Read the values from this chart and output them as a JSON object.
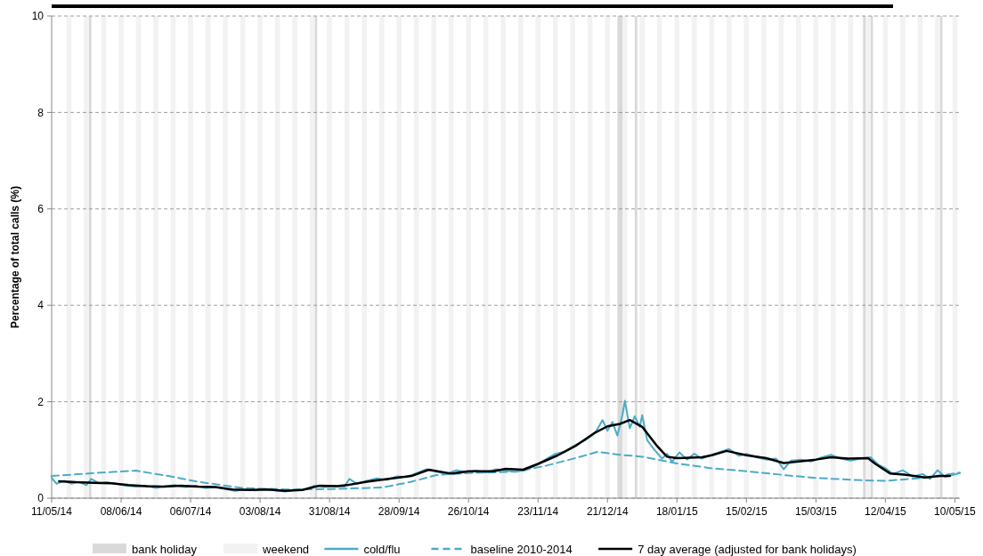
{
  "chart_data": {
    "type": "line",
    "ylabel": "Percentage of total calls (%)",
    "xlim": [
      "2014-05-11",
      "2015-05-12"
    ],
    "xticks": [
      {
        "value": "2014-05-11",
        "label": "11/05/14"
      },
      {
        "value": "2014-06-08",
        "label": "08/06/14"
      },
      {
        "value": "2014-07-06",
        "label": "06/07/14"
      },
      {
        "value": "2014-08-03",
        "label": "03/08/14"
      },
      {
        "value": "2014-08-31",
        "label": "31/08/14"
      },
      {
        "value": "2014-09-28",
        "label": "28/09/14"
      },
      {
        "value": "2014-10-26",
        "label": "26/10/14"
      },
      {
        "value": "2014-11-23",
        "label": "23/11/14"
      },
      {
        "value": "2014-12-21",
        "label": "21/12/14"
      },
      {
        "value": "2015-01-18",
        "label": "18/01/15"
      },
      {
        "value": "2015-02-15",
        "label": "15/02/15"
      },
      {
        "value": "2015-03-15",
        "label": "15/03/15"
      },
      {
        "value": "2015-04-12",
        "label": "12/04/15"
      },
      {
        "value": "2015-05-10",
        "label": "10/05/15"
      }
    ],
    "ylim": [
      0,
      10
    ],
    "yticks": [
      0,
      2,
      4,
      6,
      8,
      10
    ],
    "grid": "y",
    "legend": "bottom",
    "bands": [
      {
        "axis": "x",
        "from": "2014-05-26",
        "to": "2014-05-27",
        "label": "bank holiday",
        "color": "#d9d9d9"
      },
      {
        "axis": "x",
        "from": "2014-08-25",
        "to": "2014-08-26",
        "color": "#d9d9d9"
      },
      {
        "axis": "x",
        "from": "2014-12-25",
        "to": "2014-12-27",
        "color": "#d9d9d9"
      },
      {
        "axis": "x",
        "from": "2015-01-01",
        "to": "2015-01-02",
        "color": "#d9d9d9"
      },
      {
        "axis": "x",
        "from": "2015-04-03",
        "to": "2015-04-04",
        "color": "#d9d9d9"
      },
      {
        "axis": "x",
        "from": "2015-04-06",
        "to": "2015-04-07",
        "color": "#d9d9d9"
      },
      {
        "axis": "x",
        "from": "2015-05-04",
        "to": "2015-05-05",
        "color": "#d9d9d9"
      },
      {
        "axis": "x",
        "from": "2014-05-17",
        "to": "2014-05-19",
        "label": "weekend",
        "color": "#f2f2f2"
      },
      {
        "axis": "x",
        "from": "2014-05-24",
        "to": "2014-05-26",
        "color": "#f2f2f2"
      },
      {
        "axis": "x",
        "from": "2014-05-31",
        "to": "2014-06-02",
        "color": "#f2f2f2"
      },
      {
        "axis": "x",
        "from": "2014-06-07",
        "to": "2014-06-09",
        "color": "#f2f2f2"
      },
      {
        "axis": "x",
        "from": "2014-06-14",
        "to": "2014-06-16",
        "color": "#f2f2f2"
      },
      {
        "axis": "x",
        "from": "2014-06-21",
        "to": "2014-06-23",
        "color": "#f2f2f2"
      },
      {
        "axis": "x",
        "from": "2014-06-28",
        "to": "2014-06-30",
        "color": "#f2f2f2"
      },
      {
        "axis": "x",
        "from": "2014-07-05",
        "to": "2014-07-07",
        "color": "#f2f2f2"
      },
      {
        "axis": "x",
        "from": "2014-07-12",
        "to": "2014-07-14",
        "color": "#f2f2f2"
      },
      {
        "axis": "x",
        "from": "2014-07-19",
        "to": "2014-07-21",
        "color": "#f2f2f2"
      },
      {
        "axis": "x",
        "from": "2014-07-26",
        "to": "2014-07-28",
        "color": "#f2f2f2"
      },
      {
        "axis": "x",
        "from": "2014-08-02",
        "to": "2014-08-04",
        "color": "#f2f2f2"
      },
      {
        "axis": "x",
        "from": "2014-08-09",
        "to": "2014-08-11",
        "color": "#f2f2f2"
      },
      {
        "axis": "x",
        "from": "2014-08-16",
        "to": "2014-08-18",
        "color": "#f2f2f2"
      },
      {
        "axis": "x",
        "from": "2014-08-23",
        "to": "2014-08-25",
        "color": "#f2f2f2"
      },
      {
        "axis": "x",
        "from": "2014-08-30",
        "to": "2014-09-01",
        "color": "#f2f2f2"
      },
      {
        "axis": "x",
        "from": "2014-09-06",
        "to": "2014-09-08",
        "color": "#f2f2f2"
      },
      {
        "axis": "x",
        "from": "2014-09-13",
        "to": "2014-09-15",
        "color": "#f2f2f2"
      },
      {
        "axis": "x",
        "from": "2014-09-20",
        "to": "2014-09-22",
        "color": "#f2f2f2"
      },
      {
        "axis": "x",
        "from": "2014-09-27",
        "to": "2014-09-29",
        "color": "#f2f2f2"
      },
      {
        "axis": "x",
        "from": "2014-10-04",
        "to": "2014-10-06",
        "color": "#f2f2f2"
      },
      {
        "axis": "x",
        "from": "2014-10-11",
        "to": "2014-10-13",
        "color": "#f2f2f2"
      },
      {
        "axis": "x",
        "from": "2014-10-18",
        "to": "2014-10-20",
        "color": "#f2f2f2"
      },
      {
        "axis": "x",
        "from": "2014-10-25",
        "to": "2014-10-27",
        "color": "#f2f2f2"
      },
      {
        "axis": "x",
        "from": "2014-11-01",
        "to": "2014-11-03",
        "color": "#f2f2f2"
      },
      {
        "axis": "x",
        "from": "2014-11-08",
        "to": "2014-11-10",
        "color": "#f2f2f2"
      },
      {
        "axis": "x",
        "from": "2014-11-15",
        "to": "2014-11-17",
        "color": "#f2f2f2"
      },
      {
        "axis": "x",
        "from": "2014-11-22",
        "to": "2014-11-24",
        "color": "#f2f2f2"
      },
      {
        "axis": "x",
        "from": "2014-11-29",
        "to": "2014-12-01",
        "color": "#f2f2f2"
      },
      {
        "axis": "x",
        "from": "2014-12-06",
        "to": "2014-12-08",
        "color": "#f2f2f2"
      },
      {
        "axis": "x",
        "from": "2014-12-13",
        "to": "2014-12-15",
        "color": "#f2f2f2"
      },
      {
        "axis": "x",
        "from": "2014-12-20",
        "to": "2014-12-22",
        "color": "#f2f2f2"
      },
      {
        "axis": "x",
        "from": "2014-12-27",
        "to": "2014-12-29",
        "color": "#f2f2f2"
      },
      {
        "axis": "x",
        "from": "2015-01-03",
        "to": "2015-01-05",
        "color": "#f2f2f2"
      },
      {
        "axis": "x",
        "from": "2015-01-10",
        "to": "2015-01-12",
        "color": "#f2f2f2"
      },
      {
        "axis": "x",
        "from": "2015-01-17",
        "to": "2015-01-19",
        "color": "#f2f2f2"
      },
      {
        "axis": "x",
        "from": "2015-01-24",
        "to": "2015-01-26",
        "color": "#f2f2f2"
      },
      {
        "axis": "x",
        "from": "2015-01-31",
        "to": "2015-02-02",
        "color": "#f2f2f2"
      },
      {
        "axis": "x",
        "from": "2015-02-07",
        "to": "2015-02-09",
        "color": "#f2f2f2"
      },
      {
        "axis": "x",
        "from": "2015-02-14",
        "to": "2015-02-16",
        "color": "#f2f2f2"
      },
      {
        "axis": "x",
        "from": "2015-02-21",
        "to": "2015-02-23",
        "color": "#f2f2f2"
      },
      {
        "axis": "x",
        "from": "2015-02-28",
        "to": "2015-03-02",
        "color": "#f2f2f2"
      },
      {
        "axis": "x",
        "from": "2015-03-07",
        "to": "2015-03-09",
        "color": "#f2f2f2"
      },
      {
        "axis": "x",
        "from": "2015-03-14",
        "to": "2015-03-16",
        "color": "#f2f2f2"
      },
      {
        "axis": "x",
        "from": "2015-03-21",
        "to": "2015-03-23",
        "color": "#f2f2f2"
      },
      {
        "axis": "x",
        "from": "2015-03-28",
        "to": "2015-03-30",
        "color": "#f2f2f2"
      },
      {
        "axis": "x",
        "from": "2015-04-04",
        "to": "2015-04-06",
        "color": "#f2f2f2"
      },
      {
        "axis": "x",
        "from": "2015-04-11",
        "to": "2015-04-13",
        "color": "#f2f2f2"
      },
      {
        "axis": "x",
        "from": "2015-04-18",
        "to": "2015-04-20",
        "color": "#f2f2f2"
      },
      {
        "axis": "x",
        "from": "2015-04-25",
        "to": "2015-04-27",
        "color": "#f2f2f2"
      },
      {
        "axis": "x",
        "from": "2015-05-02",
        "to": "2015-05-04",
        "color": "#f2f2f2"
      },
      {
        "axis": "x",
        "from": "2015-05-09",
        "to": "2015-05-11",
        "color": "#f2f2f2"
      }
    ],
    "series": [
      {
        "name": "cold/flu",
        "color": "#4bacc6",
        "line_style": "solid",
        "x": [
          "2014-05-11",
          "2014-05-13",
          "2014-05-16",
          "2014-05-19",
          "2014-05-22",
          "2014-05-25",
          "2014-05-27",
          "2014-05-30",
          "2014-06-02",
          "2014-06-06",
          "2014-06-10",
          "2014-06-14",
          "2014-06-18",
          "2014-06-22",
          "2014-06-26",
          "2014-06-30",
          "2014-07-04",
          "2014-07-08",
          "2014-07-12",
          "2014-07-16",
          "2014-07-20",
          "2014-07-24",
          "2014-07-28",
          "2014-08-01",
          "2014-08-05",
          "2014-08-09",
          "2014-08-13",
          "2014-08-17",
          "2014-08-21",
          "2014-08-25",
          "2014-08-29",
          "2014-09-02",
          "2014-09-06",
          "2014-09-08",
          "2014-09-11",
          "2014-09-15",
          "2014-09-19",
          "2014-09-23",
          "2014-09-27",
          "2014-10-01",
          "2014-10-05",
          "2014-10-09",
          "2014-10-13",
          "2014-10-17",
          "2014-10-21",
          "2014-10-25",
          "2014-10-29",
          "2014-11-02",
          "2014-11-06",
          "2014-11-10",
          "2014-11-14",
          "2014-11-18",
          "2014-11-22",
          "2014-11-26",
          "2014-11-30",
          "2014-12-04",
          "2014-12-08",
          "2014-12-12",
          "2014-12-16",
          "2014-12-19",
          "2014-12-21",
          "2014-12-23",
          "2014-12-25",
          "2014-12-27",
          "2014-12-28",
          "2014-12-30",
          "2015-01-01",
          "2015-01-03",
          "2015-01-04",
          "2015-01-06",
          "2015-01-09",
          "2015-01-12",
          "2015-01-14",
          "2015-01-16",
          "2015-01-19",
          "2015-01-22",
          "2015-01-25",
          "2015-01-28",
          "2015-02-01",
          "2015-02-04",
          "2015-02-08",
          "2015-02-12",
          "2015-02-15",
          "2015-02-19",
          "2015-02-23",
          "2015-02-27",
          "2015-03-02",
          "2015-03-05",
          "2015-03-09",
          "2015-03-13",
          "2015-03-17",
          "2015-03-21",
          "2015-03-25",
          "2015-03-29",
          "2015-04-02",
          "2015-04-06",
          "2015-04-09",
          "2015-04-12",
          "2015-04-15",
          "2015-04-19",
          "2015-04-23",
          "2015-04-27",
          "2015-04-30",
          "2015-05-03",
          "2015-05-06",
          "2015-05-09",
          "2015-05-12"
        ],
        "values": [
          0.42,
          0.3,
          0.36,
          0.3,
          0.34,
          0.27,
          0.4,
          0.31,
          0.33,
          0.3,
          0.26,
          0.24,
          0.26,
          0.21,
          0.25,
          0.27,
          0.23,
          0.26,
          0.21,
          0.23,
          0.19,
          0.15,
          0.18,
          0.16,
          0.19,
          0.16,
          0.14,
          0.17,
          0.18,
          0.26,
          0.23,
          0.26,
          0.24,
          0.4,
          0.3,
          0.36,
          0.41,
          0.38,
          0.45,
          0.44,
          0.52,
          0.6,
          0.55,
          0.5,
          0.58,
          0.54,
          0.57,
          0.53,
          0.6,
          0.57,
          0.55,
          0.58,
          0.68,
          0.8,
          0.92,
          0.97,
          1.1,
          1.2,
          1.35,
          1.62,
          1.4,
          1.58,
          1.3,
          1.72,
          2.02,
          1.45,
          1.7,
          1.48,
          1.72,
          1.2,
          1.0,
          0.82,
          0.92,
          0.75,
          0.95,
          0.8,
          0.92,
          0.82,
          0.9,
          0.95,
          1.02,
          0.88,
          0.92,
          0.85,
          0.8,
          0.82,
          0.6,
          0.78,
          0.8,
          0.76,
          0.84,
          0.9,
          0.82,
          0.78,
          0.82,
          0.85,
          0.7,
          0.62,
          0.5,
          0.58,
          0.45,
          0.5,
          0.4,
          0.58,
          0.44,
          0.48,
          0.52
        ]
      },
      {
        "name": "baseline 2010-2014",
        "color": "#4bacc6",
        "line_style": "dashed",
        "x": [
          "2014-05-11",
          "2014-05-28",
          "2014-06-14",
          "2014-06-27",
          "2014-07-09",
          "2014-07-27",
          "2014-08-14",
          "2014-09-01",
          "2014-09-21",
          "2014-10-03",
          "2014-10-13",
          "2014-10-26",
          "2014-11-14",
          "2014-11-26",
          "2014-12-08",
          "2014-12-17",
          "2014-12-26",
          "2015-01-04",
          "2015-01-18",
          "2015-02-01",
          "2015-02-15",
          "2015-03-04",
          "2015-03-15",
          "2015-04-03",
          "2015-04-12",
          "2015-04-27",
          "2015-05-12"
        ],
        "values": [
          0.46,
          0.52,
          0.57,
          0.46,
          0.34,
          0.21,
          0.18,
          0.19,
          0.22,
          0.34,
          0.48,
          0.52,
          0.55,
          0.67,
          0.83,
          0.96,
          0.9,
          0.86,
          0.72,
          0.62,
          0.56,
          0.47,
          0.42,
          0.37,
          0.36,
          0.42,
          0.53
        ]
      },
      {
        "name": "7 day average (adjusted for bank holidays)",
        "color": "#000000",
        "line_style": "solid",
        "x": [
          "2014-05-14",
          "2014-05-21",
          "2014-05-28",
          "2014-06-04",
          "2014-06-11",
          "2014-06-18",
          "2014-06-25",
          "2014-07-02",
          "2014-07-09",
          "2014-07-16",
          "2014-07-23",
          "2014-07-30",
          "2014-08-06",
          "2014-08-13",
          "2014-08-20",
          "2014-08-27",
          "2014-09-03",
          "2014-09-07",
          "2014-09-15",
          "2014-09-28",
          "2014-10-03",
          "2014-10-10",
          "2014-10-19",
          "2014-10-26",
          "2014-11-05",
          "2014-11-10",
          "2014-11-17",
          "2014-11-23",
          "2014-12-01",
          "2014-12-08",
          "2014-12-16",
          "2014-12-21",
          "2014-12-26",
          "2014-12-30",
          "2015-01-04",
          "2015-01-10",
          "2015-01-14",
          "2015-01-18",
          "2015-01-28",
          "2015-02-01",
          "2015-02-07",
          "2015-02-15",
          "2015-02-23",
          "2015-03-02",
          "2015-03-15",
          "2015-03-21",
          "2015-03-28",
          "2015-04-05",
          "2015-04-08",
          "2015-04-14",
          "2015-04-21",
          "2015-04-28",
          "2015-05-04",
          "2015-05-08"
        ],
        "values": [
          0.35,
          0.33,
          0.32,
          0.31,
          0.27,
          0.25,
          0.24,
          0.26,
          0.24,
          0.23,
          0.18,
          0.17,
          0.18,
          0.15,
          0.17,
          0.26,
          0.25,
          0.27,
          0.34,
          0.43,
          0.46,
          0.59,
          0.51,
          0.56,
          0.56,
          0.61,
          0.59,
          0.71,
          0.89,
          1.08,
          1.36,
          1.49,
          1.54,
          1.62,
          1.48,
          1.08,
          0.86,
          0.83,
          0.85,
          0.89,
          0.98,
          0.89,
          0.83,
          0.73,
          0.8,
          0.85,
          0.82,
          0.83,
          0.71,
          0.51,
          0.48,
          0.43,
          0.46,
          0.46
        ]
      }
    ]
  }
}
